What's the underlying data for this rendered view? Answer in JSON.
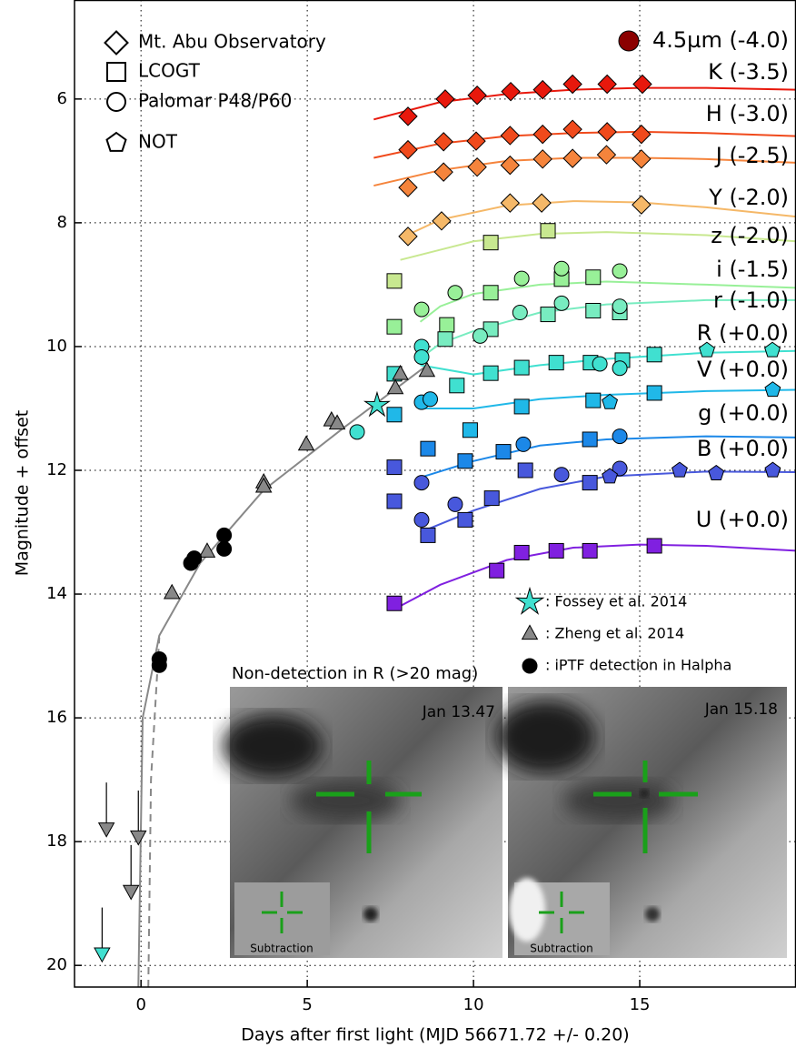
{
  "chart_data": {
    "type": "scatter",
    "xlabel": "Days after first light (MJD 56671.72 +/- 0.20)",
    "ylabel": "Magnitude + offset",
    "xlim": [
      -2,
      19.7
    ],
    "ylim": [
      20.35,
      4.4
    ],
    "xticks": [
      0,
      5,
      10,
      15
    ],
    "yticks": [
      6,
      8,
      10,
      12,
      14,
      16,
      18,
      20
    ],
    "grid": true,
    "instruments": [
      {
        "name": "Mt. Abu Observatory",
        "marker": "diamond"
      },
      {
        "name": "LCOGT",
        "marker": "square"
      },
      {
        "name": "Palomar P48/P60",
        "marker": "circle"
      },
      {
        "name": "NOT",
        "marker": "pentagon"
      }
    ],
    "bands": [
      {
        "name": "4.5µm (-4.0)",
        "color": "#8b0000",
        "points": []
      },
      {
        "name": "K (-3.5)",
        "color": "#e8180c",
        "fit": {
          "x": [
            7,
            9,
            11,
            13,
            15,
            17,
            19.7
          ],
          "values": [
            6.33,
            6.05,
            5.92,
            5.85,
            5.82,
            5.82,
            5.85
          ]
        },
        "points": [
          {
            "marker": "diamond",
            "x": [
              8.03,
              9.15,
              10.11,
              11.12,
              12.08,
              12.98,
              14.02,
              15.08
            ],
            "values": [
              6.28,
              6.0,
              5.94,
              5.88,
              5.85,
              5.76,
              5.76,
              5.76
            ]
          }
        ]
      },
      {
        "name": "H (-3.0)",
        "color": "#f04a1c",
        "fit": {
          "x": [
            7,
            9,
            11,
            13,
            15,
            17,
            19.7
          ],
          "values": [
            6.95,
            6.72,
            6.6,
            6.55,
            6.53,
            6.55,
            6.6
          ]
        },
        "points": [
          {
            "marker": "diamond",
            "x": [
              8.03,
              9.1,
              10.08,
              11.1,
              12.08,
              12.98,
              14.02,
              15.05
            ],
            "values": [
              6.82,
              6.69,
              6.68,
              6.59,
              6.57,
              6.49,
              6.53,
              6.57
            ]
          }
        ]
      },
      {
        "name": "J (-2.5)",
        "color": "#f5843c",
        "fit": {
          "x": [
            7,
            9,
            11,
            13,
            15,
            17,
            19.7
          ],
          "values": [
            7.4,
            7.15,
            7.0,
            6.95,
            6.95,
            6.97,
            7.03
          ]
        },
        "points": [
          {
            "marker": "diamond",
            "x": [
              8.03,
              9.1,
              10.11,
              11.1,
              12.08,
              12.98,
              14.0,
              15.05
            ],
            "values": [
              7.43,
              7.18,
              7.1,
              7.07,
              6.97,
              6.96,
              6.9,
              6.97
            ]
          }
        ]
      },
      {
        "name": "Y (-2.0)",
        "color": "#f5b868",
        "fit": {
          "x": [
            7.8,
            9,
            11,
            13,
            15,
            17,
            19.7
          ],
          "values": [
            8.25,
            7.95,
            7.72,
            7.65,
            7.67,
            7.75,
            7.9
          ]
        },
        "points": [
          {
            "marker": "diamond",
            "x": [
              8.03,
              9.04,
              11.1,
              12.05,
              15.05
            ],
            "values": [
              8.22,
              7.97,
              7.68,
              7.68,
              7.71
            ]
          }
        ]
      },
      {
        "name": "z (-2.0)",
        "color": "#c8e890",
        "fit": {
          "x": [
            7.8,
            10,
            12,
            14,
            17,
            19.7
          ],
          "values": [
            8.6,
            8.3,
            8.18,
            8.15,
            8.2,
            8.3
          ]
        },
        "points": [
          {
            "marker": "square",
            "x": [
              7.62,
              10.52,
              12.24
            ],
            "values": [
              8.94,
              8.32,
              8.13
            ]
          }
        ]
      },
      {
        "name": "i (-1.5)",
        "color": "#98f098",
        "fit": {
          "x": [
            8.4,
            9,
            10,
            12,
            14,
            17,
            19.7
          ],
          "values": [
            9.6,
            9.35,
            9.15,
            9.0,
            8.95,
            9.0,
            9.05
          ]
        },
        "points": [
          {
            "marker": "square",
            "x": [
              7.62,
              9.2,
              10.52,
              12.65,
              13.6
            ],
            "values": [
              9.68,
              9.65,
              9.13,
              8.91,
              8.88
            ]
          },
          {
            "marker": "circle",
            "x": [
              8.44,
              9.45,
              11.45,
              12.65,
              14.4
            ],
            "values": [
              9.4,
              9.13,
              8.9,
              8.74,
              8.78
            ]
          }
        ]
      },
      {
        "name": "r (-1.0)",
        "color": "#78ecc0",
        "fit": {
          "x": [
            8.5,
            9,
            10,
            12,
            14,
            17,
            19.7
          ],
          "values": [
            10.15,
            9.95,
            9.75,
            9.45,
            9.32,
            9.25,
            9.25
          ]
        },
        "points": [
          {
            "marker": "square",
            "x": [
              9.15,
              10.52,
              12.24,
              13.6,
              14.4
            ],
            "values": [
              9.88,
              9.72,
              9.48,
              9.42,
              9.45
            ]
          },
          {
            "marker": "circle",
            "x": [
              10.2,
              11.4,
              12.65,
              14.4
            ],
            "values": [
              9.83,
              9.45,
              9.3,
              9.35
            ]
          }
        ]
      },
      {
        "name": "R (+0.0)",
        "color": "#40e0d0",
        "fit": {
          "x": [
            8.4,
            10,
            12,
            14,
            17,
            19.7
          ],
          "values": [
            10.3,
            10.45,
            10.3,
            10.2,
            10.1,
            10.07
          ]
        },
        "points": [
          {
            "marker": "square",
            "x": [
              7.62,
              9.5,
              10.52,
              11.45,
              12.49,
              13.52,
              14.48,
              15.44
            ],
            "values": [
              10.44,
              10.63,
              10.43,
              10.34,
              10.26,
              10.26,
              10.22,
              10.13
            ]
          },
          {
            "marker": "circle",
            "x": [
              6.5,
              8.44,
              8.44,
              13.8,
              14.4
            ],
            "values": [
              11.38,
              10.0,
              10.17,
              10.28,
              10.35
            ]
          },
          {
            "marker": "pentagon",
            "x": [
              17.02,
              18.99
            ],
            "values": [
              10.06,
              10.06
            ]
          }
        ]
      },
      {
        "name": "V (+0.0)",
        "color": "#20b8e8",
        "fit": {
          "x": [
            8.5,
            10,
            12,
            14,
            17,
            19.7
          ],
          "values": [
            11.0,
            11.0,
            10.85,
            10.78,
            10.72,
            10.7
          ]
        },
        "points": [
          {
            "marker": "square",
            "x": [
              7.62,
              9.9,
              11.45,
              13.6,
              15.44
            ],
            "values": [
              11.1,
              11.35,
              10.97,
              10.87,
              10.75
            ]
          },
          {
            "marker": "circle",
            "x": [
              8.44,
              8.7
            ],
            "values": [
              10.9,
              10.85
            ]
          },
          {
            "marker": "pentagon",
            "x": [
              14.1,
              19.0
            ],
            "values": [
              10.9,
              10.7
            ]
          }
        ]
      },
      {
        "name": "g (+0.0)",
        "color": "#1c88e8",
        "fit": {
          "x": [
            8.5,
            10,
            12,
            14,
            17,
            19.7
          ],
          "values": [
            12.1,
            11.85,
            11.6,
            11.5,
            11.45,
            11.47
          ]
        },
        "points": [
          {
            "marker": "square",
            "x": [
              8.63,
              9.75,
              10.9,
              13.5
            ],
            "values": [
              11.65,
              11.85,
              11.7,
              11.5
            ]
          },
          {
            "marker": "circle",
            "x": [
              11.5,
              14.4
            ],
            "values": [
              11.58,
              11.45
            ]
          }
        ]
      },
      {
        "name": "B (+0.0)",
        "color": "#4858dc",
        "fit": {
          "x": [
            8.4,
            10,
            12,
            14,
            17,
            19.7
          ],
          "values": [
            13.0,
            12.65,
            12.3,
            12.1,
            12.02,
            12.03
          ]
        },
        "points": [
          {
            "marker": "square",
            "x": [
              7.62,
              7.62,
              8.63,
              9.75,
              10.55,
              11.56,
              13.5
            ],
            "values": [
              11.95,
              12.5,
              13.05,
              12.8,
              12.45,
              12.0,
              12.2
            ]
          },
          {
            "marker": "circle",
            "x": [
              8.44,
              8.44,
              9.45,
              12.65,
              14.4
            ],
            "values": [
              12.2,
              12.8,
              12.55,
              12.07,
              11.97
            ]
          },
          {
            "marker": "pentagon",
            "x": [
              14.1,
              16.2,
              17.3,
              19.0
            ],
            "values": [
              12.1,
              12.0,
              12.05,
              12.0
            ]
          }
        ]
      },
      {
        "name": "U (+0.0)",
        "color": "#8020e0",
        "fit": {
          "x": [
            7.6,
            9,
            11,
            13,
            15,
            17,
            19.7
          ],
          "values": [
            14.25,
            13.85,
            13.45,
            13.25,
            13.2,
            13.22,
            13.3
          ]
        },
        "points": [
          {
            "marker": "square",
            "x": [
              7.62,
              10.7,
              11.45,
              12.49,
              13.5,
              15.44
            ],
            "values": [
              14.15,
              13.62,
              13.33,
              13.3,
              13.3,
              13.22
            ]
          }
        ]
      }
    ],
    "references": [
      {
        "name": ": Fossey et al. 2014",
        "marker": "star",
        "color": "#40e0d0",
        "x": [
          7.1
        ],
        "values": [
          10.95
        ]
      },
      {
        "name": ": Zheng et al. 2014",
        "marker": "triangle",
        "color": "#888888",
        "x": [
          0.93,
          1.99,
          3.69,
          3.69,
          4.97,
          5.73,
          5.9,
          7.65,
          7.8,
          8.6
        ],
        "values": [
          13.99,
          13.32,
          12.2,
          12.27,
          11.59,
          11.2,
          11.25,
          10.68,
          10.45,
          10.4
        ]
      },
      {
        "name": ": iPTF detection in Halpha",
        "marker": "circle",
        "color": "#000000",
        "x": [
          0.55,
          0.55,
          1.5,
          1.6,
          2.5,
          2.5
        ],
        "values": [
          15.05,
          15.15,
          13.5,
          13.42,
          13.05,
          13.27
        ]
      }
    ],
    "upper_limits": [
      {
        "color": "#888888",
        "x": [
          -1.04,
          -0.3,
          -0.08
        ],
        "values": [
          17.78,
          18.79,
          17.91
        ]
      },
      {
        "color": "#40e0d0",
        "x": [
          -1.17
        ],
        "values": [
          19.8
        ]
      }
    ],
    "models": [
      {
        "style": "solid",
        "x": [
          -0.08,
          0.05,
          0.55,
          1.78,
          3.69,
          6.15,
          8.61
        ],
        "values": [
          20.35,
          16.0,
          14.67,
          13.5,
          12.32,
          11.29,
          10.3
        ]
      },
      {
        "style": "dashed",
        "x": [
          0.22,
          0.3,
          0.55
        ],
        "values": [
          20.35,
          17.0,
          14.7
        ]
      }
    ],
    "inset_title": "Non-detection in R (>20 mag)",
    "insets": [
      {
        "date": "Jan 13.47",
        "label": "Subtraction"
      },
      {
        "date": "Jan 15.18",
        "label": "Subtraction"
      }
    ]
  }
}
